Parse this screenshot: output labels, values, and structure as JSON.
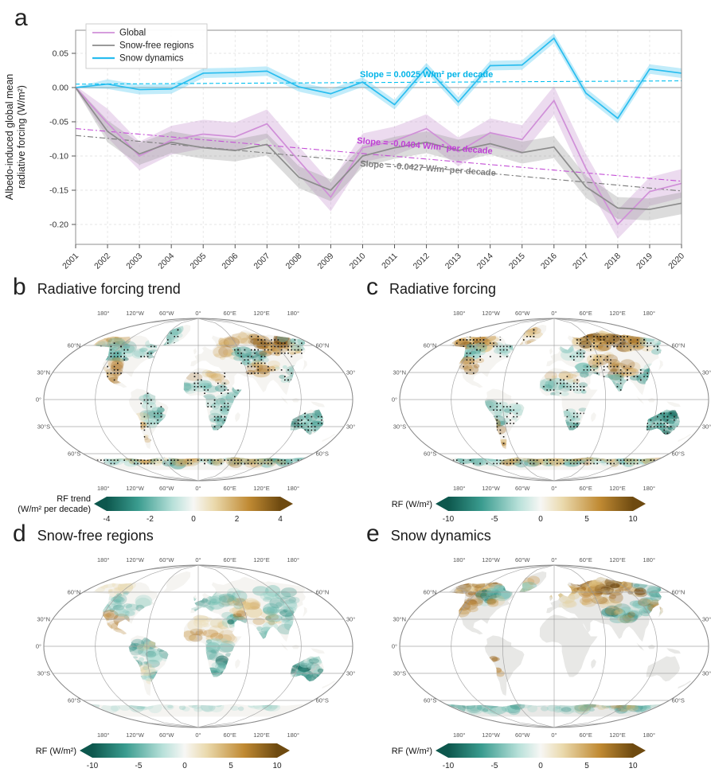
{
  "panels": {
    "a": {
      "label": "a"
    },
    "b": {
      "label": "b",
      "title": "Radiative forcing trend"
    },
    "c": {
      "label": "c",
      "title": "Radiative forcing"
    },
    "d": {
      "label": "d",
      "title": "Snow-free regions"
    },
    "e": {
      "label": "e",
      "title": "Snow dynamics"
    }
  },
  "chart_data": [
    {
      "type": "line",
      "title": "Albedo-induced global mean radiative forcing",
      "ylabel_lines": [
        "Albedo-induced global mean",
        "radiative forcing (W/m²)"
      ],
      "x": [
        2001,
        2002,
        2003,
        2004,
        2005,
        2006,
        2007,
        2008,
        2009,
        2010,
        2011,
        2012,
        2013,
        2014,
        2015,
        2016,
        2017,
        2018,
        2019,
        2020
      ],
      "yticks": [
        0.05,
        0.0,
        -0.05,
        -0.1,
        -0.15,
        -0.2
      ],
      "ylim": [
        -0.235,
        0.095
      ],
      "series": [
        {
          "name": "Global",
          "color": "#d08fd8",
          "band_color": "#c998d2",
          "band": 0.021,
          "values": [
            0.0,
            -0.052,
            -0.1,
            -0.077,
            -0.068,
            -0.072,
            -0.053,
            -0.107,
            -0.16,
            -0.088,
            -0.078,
            -0.06,
            -0.094,
            -0.066,
            -0.076,
            -0.019,
            -0.118,
            -0.2,
            -0.152,
            -0.14
          ],
          "trend": {
            "slope_per_decade": -0.0404,
            "start": -0.06,
            "end": -0.1368,
            "color": "#c44fd6",
            "dash": "7,3,2,3"
          }
        },
        {
          "name": "Snow-free regions",
          "color": "#8c8c8c",
          "band_color": "#9a9a9a",
          "band": 0.016,
          "values": [
            0.0,
            -0.064,
            -0.097,
            -0.08,
            -0.088,
            -0.092,
            -0.083,
            -0.131,
            -0.15,
            -0.1,
            -0.088,
            -0.08,
            -0.092,
            -0.082,
            -0.095,
            -0.087,
            -0.145,
            -0.176,
            -0.178,
            -0.169
          ],
          "trend": {
            "slope_per_decade": -0.0427,
            "start": -0.07,
            "end": -0.1511,
            "color": "#7a7a7a",
            "dash": "7,3,2,3"
          }
        },
        {
          "name": "Snow dynamics",
          "color": "#29bdef",
          "band_color": "#4fc9f2",
          "band": 0.007,
          "values": [
            0.0,
            0.005,
            -0.003,
            -0.002,
            0.021,
            0.022,
            0.024,
            0.001,
            -0.009,
            0.008,
            -0.025,
            0.029,
            -0.021,
            0.032,
            0.033,
            0.072,
            -0.008,
            -0.045,
            0.027,
            0.021
          ],
          "trend": {
            "slope_per_decade": 0.0025,
            "start": 0.005,
            "end": 0.0098,
            "color": "#00c0f0",
            "dash": "5,3"
          }
        }
      ],
      "annotations": [
        {
          "text": "Slope = 0.0025 W/m² per decade",
          "color": "#00b4e8",
          "x": 452,
          "y": 97,
          "rotate": 0
        },
        {
          "text": "Slope = -0.0404 W/m² per decade",
          "color": "#bf3fd6",
          "x": 448,
          "y": 180,
          "rotate": 4.5
        },
        {
          "text": "Slope = -0.0427 W/m² per decade",
          "color": "#7f7f7f",
          "x": 452,
          "y": 209,
          "rotate": 4
        }
      ],
      "legend_position": "upper left",
      "grid": true
    },
    {
      "type": "heatmap",
      "panel": "b",
      "title": "Radiative forcing trend",
      "colorbar": {
        "label_lines": [
          "RF trend",
          "(W/m² per decade)"
        ],
        "ticks": [
          -4,
          -2,
          0,
          2,
          4
        ],
        "vmin": -4,
        "vmax": 4
      },
      "stippled": true,
      "land_color": "#f5f4f1",
      "lon_ticks": [
        {
          "v": -180,
          "t": "180°"
        },
        {
          "v": -120,
          "t": "120°W"
        },
        {
          "v": -60,
          "t": "60°W"
        },
        {
          "v": 0,
          "t": "0°"
        },
        {
          "v": 60,
          "t": "60°E"
        },
        {
          "v": 120,
          "t": "120°E"
        },
        {
          "v": 180,
          "t": "180°"
        }
      ],
      "lat_ticks": [
        {
          "v": 60,
          "t": "60°N"
        },
        {
          "v": 30,
          "t": "30°N"
        },
        {
          "v": 0,
          "t": "0°"
        },
        {
          "v": -30,
          "t": "30°S"
        },
        {
          "v": -60,
          "t": "60°S"
        }
      ],
      "regions": [
        [
          -168,
          -122,
          60,
          70,
          "brown",
          0.45,
          0
        ],
        [
          -150,
          -118,
          55,
          64,
          "teal",
          0.5,
          1
        ],
        [
          -128,
          -98,
          44,
          60,
          "teal",
          0.8,
          1
        ],
        [
          -118,
          -98,
          28,
          44,
          "brown",
          0.5,
          1
        ],
        [
          -114,
          -95,
          17,
          30,
          "brown",
          0.55,
          1
        ],
        [
          -86,
          -60,
          48,
          62,
          "teal",
          0.55,
          1
        ],
        [
          -60,
          -40,
          62,
          80,
          "teal",
          0.35,
          1
        ],
        [
          -72,
          -55,
          -8,
          8,
          "teal",
          0.3,
          1
        ],
        [
          -64,
          -44,
          -28,
          -6,
          "teal",
          0.75,
          1
        ],
        [
          -74,
          -65,
          -46,
          -18,
          "brown",
          0.55,
          1
        ],
        [
          -17,
          38,
          8,
          18,
          "teal",
          0.6,
          1
        ],
        [
          -8,
          32,
          18,
          29,
          "brown",
          0.4,
          1
        ],
        [
          8,
          40,
          -12,
          4,
          "teal",
          0.4,
          1
        ],
        [
          14,
          36,
          -35,
          -14,
          "teal",
          0.7,
          1
        ],
        [
          38,
          52,
          2,
          12,
          "teal",
          0.45,
          1
        ],
        [
          24,
          58,
          46,
          60,
          "brown",
          0.35,
          0
        ],
        [
          54,
          92,
          40,
          57,
          "teal",
          0.85,
          1
        ],
        [
          62,
          100,
          29,
          40,
          "brown",
          0.6,
          1
        ],
        [
          100,
          124,
          20,
          36,
          "teal",
          0.6,
          1
        ],
        [
          94,
          148,
          50,
          70,
          "brown",
          0.8,
          1
        ],
        [
          40,
          92,
          60,
          71,
          "brown",
          0.45,
          0
        ],
        [
          148,
          180,
          55,
          68,
          "teal",
          0.55,
          1
        ],
        [
          114,
          152,
          -38,
          -13,
          "teal",
          0.8,
          1
        ],
        [
          -180,
          180,
          -71,
          -63,
          "teal",
          0.5,
          1
        ],
        [
          -140,
          180,
          -71,
          -63,
          "brown",
          0.3,
          1
        ]
      ]
    },
    {
      "type": "heatmap",
      "panel": "c",
      "title": "Radiative forcing",
      "colorbar": {
        "label_lines": [
          "RF (W/m²)"
        ],
        "ticks": [
          -10,
          -5,
          0,
          5,
          10
        ],
        "vmin": -10,
        "vmax": 10
      },
      "stippled": true,
      "land_color": "#f5f4f1",
      "lon_ticks": [
        {
          "v": -180,
          "t": "180°"
        },
        {
          "v": -120,
          "t": "120°W"
        },
        {
          "v": -60,
          "t": "60°W"
        },
        {
          "v": 0,
          "t": "0°"
        },
        {
          "v": 60,
          "t": "60°E"
        },
        {
          "v": 120,
          "t": "120°E"
        },
        {
          "v": 180,
          "t": "180°"
        }
      ],
      "lat_ticks": [
        {
          "v": 60,
          "t": "60°N"
        },
        {
          "v": 30,
          "t": "30°N"
        },
        {
          "v": 0,
          "t": "0°"
        },
        {
          "v": -30,
          "t": "30°S"
        },
        {
          "v": -60,
          "t": "60°S"
        }
      ],
      "regions": [
        [
          -170,
          -95,
          58,
          71,
          "brown",
          0.75,
          1
        ],
        [
          -132,
          -100,
          46,
          60,
          "teal",
          0.7,
          1
        ],
        [
          -120,
          -98,
          26,
          45,
          "brown",
          0.45,
          1
        ],
        [
          -92,
          -60,
          48,
          62,
          "teal",
          0.5,
          1
        ],
        [
          -60,
          -35,
          62,
          80,
          "brown",
          0.45,
          1
        ],
        [
          -76,
          -40,
          -30,
          -4,
          "teal",
          0.45,
          1
        ],
        [
          -75,
          -66,
          -52,
          -24,
          "brown",
          0.5,
          1
        ],
        [
          -17,
          38,
          6,
          18,
          "teal",
          0.55,
          1
        ],
        [
          -5,
          30,
          18,
          28,
          "brown",
          0.4,
          1
        ],
        [
          12,
          36,
          -35,
          -10,
          "teal",
          0.65,
          1
        ],
        [
          34,
          52,
          26,
          38,
          "teal",
          0.75,
          1
        ],
        [
          48,
          80,
          34,
          50,
          "brown",
          0.55,
          1
        ],
        [
          74,
          104,
          27,
          40,
          "brown",
          0.7,
          1
        ],
        [
          98,
          124,
          20,
          38,
          "teal",
          0.6,
          1
        ],
        [
          38,
          150,
          56,
          72,
          "brown",
          0.85,
          1
        ],
        [
          148,
          180,
          52,
          68,
          "teal",
          0.55,
          1
        ],
        [
          18,
          46,
          44,
          58,
          "teal",
          0.4,
          1
        ],
        [
          58,
          90,
          8,
          26,
          "teal",
          0.4,
          1
        ],
        [
          108,
          153,
          -39,
          -12,
          "teal",
          0.95,
          1
        ],
        [
          -180,
          180,
          -71,
          -63,
          "teal",
          0.5,
          1
        ],
        [
          -100,
          180,
          -71,
          -63,
          "brown",
          0.4,
          1
        ]
      ]
    },
    {
      "type": "heatmap",
      "panel": "d",
      "title": "Snow-free regions",
      "colorbar": {
        "label_lines": [
          "RF (W/m²)"
        ],
        "ticks": [
          -10,
          -5,
          0,
          5,
          10
        ],
        "vmin": -10,
        "vmax": 10
      },
      "stippled": false,
      "land_color": "#f5f4f1",
      "lon_ticks": [
        {
          "v": -180,
          "t": "180°"
        },
        {
          "v": -120,
          "t": "120°W"
        },
        {
          "v": -60,
          "t": "60°W"
        },
        {
          "v": 0,
          "t": "0°"
        },
        {
          "v": 60,
          "t": "60°E"
        },
        {
          "v": 120,
          "t": "120°E"
        },
        {
          "v": 180,
          "t": "180°"
        }
      ],
      "lat_ticks": [
        {
          "v": 60,
          "t": "60°N"
        },
        {
          "v": 30,
          "t": "30°N"
        },
        {
          "v": 0,
          "t": "0°"
        },
        {
          "v": -30,
          "t": "30°S"
        },
        {
          "v": -60,
          "t": "60°S"
        }
      ],
      "regions": [
        [
          -165,
          -120,
          58,
          70,
          "tan",
          0.35,
          0
        ],
        [
          -130,
          -95,
          40,
          60,
          "teal",
          0.5,
          0
        ],
        [
          -120,
          -93,
          14,
          35,
          "brown",
          0.55,
          0
        ],
        [
          -102,
          -72,
          32,
          50,
          "teal",
          0.35,
          0
        ],
        [
          -82,
          -35,
          -35,
          6,
          "teal",
          0.5,
          0
        ],
        [
          -68,
          -48,
          -5,
          8,
          "tan",
          0.35,
          0
        ],
        [
          -75,
          -60,
          -40,
          -20,
          "tan",
          0.3,
          0
        ],
        [
          -17,
          38,
          8,
          18,
          "brown",
          0.5,
          0
        ],
        [
          -10,
          34,
          22,
          34,
          "tan",
          0.35,
          0
        ],
        [
          8,
          42,
          -12,
          6,
          "teal",
          0.5,
          0
        ],
        [
          14,
          36,
          -35,
          -14,
          "teal",
          0.85,
          0
        ],
        [
          34,
          52,
          24,
          38,
          "teal",
          0.9,
          0
        ],
        [
          40,
          78,
          34,
          52,
          "brown",
          0.6,
          0
        ],
        [
          74,
          102,
          26,
          40,
          "brown",
          0.45,
          0
        ],
        [
          62,
          90,
          8,
          26,
          "teal",
          0.45,
          0
        ],
        [
          92,
          126,
          18,
          42,
          "teal",
          0.55,
          0
        ],
        [
          22,
          62,
          44,
          60,
          "teal",
          0.4,
          0
        ],
        [
          98,
          142,
          44,
          62,
          "teal",
          0.4,
          0
        ],
        [
          -10,
          30,
          36,
          52,
          "teal",
          0.35,
          0
        ],
        [
          113,
          154,
          -39,
          -11,
          "teal",
          1.0,
          0
        ],
        [
          -180,
          180,
          -70,
          -64,
          "teal",
          0.15,
          0
        ]
      ]
    },
    {
      "type": "heatmap",
      "panel": "e",
      "title": "Snow dynamics",
      "colorbar": {
        "label_lines": [
          "RF (W/m²)"
        ],
        "ticks": [
          -10,
          -5,
          0,
          5,
          10
        ],
        "vmin": -10,
        "vmax": 10
      },
      "stippled": false,
      "land_color": "#e8e8e6",
      "lon_ticks": [
        {
          "v": -180,
          "t": "180°"
        },
        {
          "v": -120,
          "t": "120°W"
        },
        {
          "v": -60,
          "t": "60°W"
        },
        {
          "v": 0,
          "t": "0°"
        },
        {
          "v": 60,
          "t": "60°E"
        },
        {
          "v": 120,
          "t": "120°E"
        },
        {
          "v": 180,
          "t": "180°"
        }
      ],
      "lat_ticks": [
        {
          "v": 60,
          "t": "60°N"
        },
        {
          "v": 30,
          "t": "30°N"
        },
        {
          "v": 0,
          "t": "0°"
        },
        {
          "v": -30,
          "t": "30°S"
        },
        {
          "v": -60,
          "t": "60°S"
        }
      ],
      "regions": [
        [
          -170,
          -100,
          58,
          71,
          "brown",
          0.85,
          0
        ],
        [
          -114,
          -74,
          50,
          66,
          "teal",
          0.9,
          0
        ],
        [
          -130,
          -106,
          36,
          55,
          "brown",
          0.6,
          0
        ],
        [
          -100,
          -80,
          44,
          54,
          "brown",
          0.35,
          0
        ],
        [
          -58,
          -36,
          60,
          80,
          "brown",
          0.4,
          0
        ],
        [
          -56,
          -42,
          58,
          68,
          "teal",
          0.35,
          0
        ],
        [
          -8,
          34,
          56,
          70,
          "tan",
          0.5,
          0
        ],
        [
          4,
          30,
          44,
          54,
          "tan",
          0.3,
          0
        ],
        [
          28,
          144,
          58,
          72,
          "brown",
          0.95,
          0
        ],
        [
          36,
          92,
          46,
          58,
          "brown",
          0.45,
          0
        ],
        [
          142,
          180,
          54,
          70,
          "teal",
          0.55,
          0
        ],
        [
          68,
          104,
          26,
          42,
          "teal",
          0.75,
          0
        ],
        [
          76,
          100,
          30,
          40,
          "brown",
          0.5,
          0
        ],
        [
          108,
          136,
          36,
          54,
          "teal",
          0.65,
          0
        ],
        [
          124,
          146,
          40,
          55,
          "brown",
          0.4,
          0
        ],
        [
          -74,
          -66,
          -38,
          -14,
          "brown",
          0.65,
          0
        ],
        [
          -180,
          180,
          -71,
          -63,
          "teal",
          0.5,
          0
        ],
        [
          40,
          140,
          -70,
          -64,
          "brown",
          0.35,
          0
        ]
      ]
    }
  ],
  "colormap": {
    "name": "BrBG reversed (teal negative, brown positive)",
    "stops": [
      "#0d574d",
      "#3a9c8f",
      "#b7e0d9",
      "#f7f7f5",
      "#ead9ac",
      "#c08a33",
      "#6e4a10"
    ],
    "offsets": [
      0,
      0.18,
      0.38,
      0.5,
      0.62,
      0.82,
      1
    ]
  }
}
